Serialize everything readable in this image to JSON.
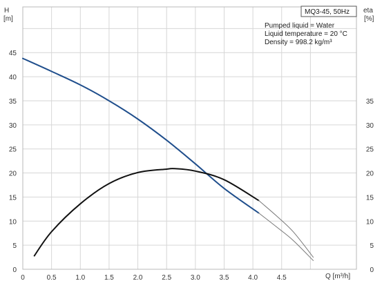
{
  "chart_data": {
    "type": "line",
    "model_label": "MQ3-45, 50Hz",
    "info_lines": [
      "Pumped liquid = Water",
      "Liquid temperature = 20 °C",
      "Density = 998.2 kg/m³"
    ],
    "y_left": {
      "label": "H",
      "unit": "[m]",
      "ticks": [
        "0",
        "5",
        "10",
        "15",
        "20",
        "25",
        "30",
        "35",
        "40",
        "45"
      ],
      "range": [
        0,
        54.5
      ]
    },
    "y_right": {
      "label": "eta",
      "unit": "[%]",
      "ticks": [
        "0",
        "5",
        "10",
        "15",
        "20",
        "25",
        "30",
        "35"
      ],
      "range": [
        0,
        54.5
      ]
    },
    "x_axis": {
      "label": "Q [m³/h]",
      "ticks": [
        "0",
        "0.5",
        "1.0",
        "1.5",
        "2.0",
        "2.5",
        "3.0",
        "3.5",
        "4.0",
        "4.5"
      ],
      "range": [
        0,
        5.8
      ]
    },
    "grid": true,
    "series": [
      {
        "color": "#1f4e8c",
        "x": [
          0,
          0.5,
          1.0,
          1.5,
          2.0,
          2.5,
          3.0,
          3.5,
          4.1
        ],
        "y": [
          43.8,
          41.1,
          38.3,
          35.0,
          31.2,
          26.8,
          21.9,
          16.8,
          11.7
        ]
      },
      {
        "color": "#111111",
        "x": [
          0.2,
          0.5,
          1.0,
          1.5,
          2.0,
          2.5,
          2.65,
          3.0,
          3.5,
          4.1
        ],
        "y": [
          2.8,
          7.8,
          13.6,
          17.8,
          20.1,
          20.8,
          20.9,
          20.4,
          18.6,
          14.3
        ]
      },
      {
        "color": "#777777",
        "x": [
          4.1,
          4.4,
          4.7,
          5.05
        ],
        "y": [
          11.7,
          8.9,
          6.0,
          1.8
        ]
      },
      {
        "color": "#777777",
        "x": [
          4.1,
          4.4,
          4.7,
          5.05
        ],
        "y": [
          14.3,
          11.2,
          7.8,
          2.5
        ]
      }
    ]
  }
}
